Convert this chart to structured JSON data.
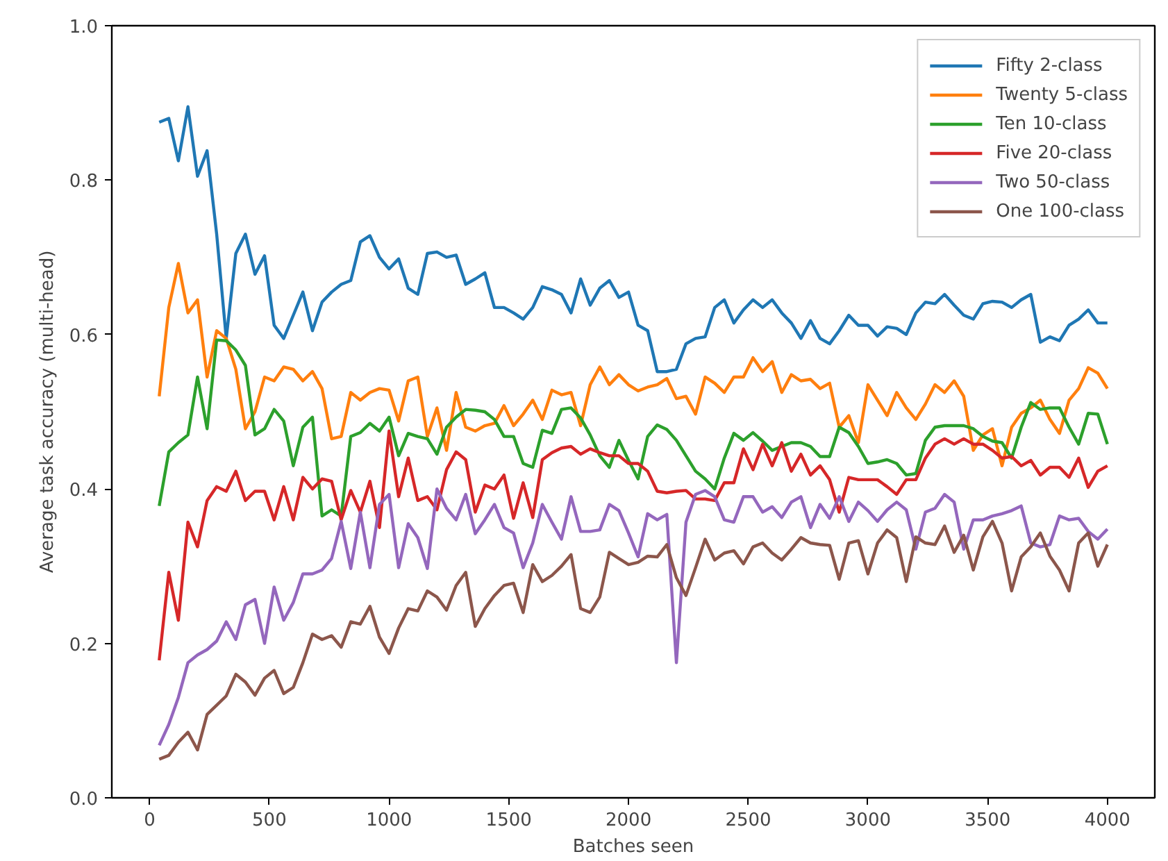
{
  "chart_data": {
    "type": "line",
    "xlabel": "Batches seen",
    "ylabel": "Average task accuracy (multi-head)",
    "x": [
      40,
      80,
      120,
      160,
      200,
      240,
      280,
      320,
      360,
      400,
      440,
      480,
      520,
      560,
      600,
      640,
      680,
      720,
      760,
      800,
      840,
      880,
      920,
      960,
      1000,
      1040,
      1080,
      1120,
      1160,
      1200,
      1240,
      1280,
      1320,
      1360,
      1400,
      1440,
      1480,
      1520,
      1560,
      1600,
      1640,
      1680,
      1720,
      1760,
      1800,
      1840,
      1880,
      1920,
      1960,
      2000,
      2040,
      2080,
      2120,
      2160,
      2200,
      2240,
      2280,
      2320,
      2360,
      2400,
      2440,
      2480,
      2520,
      2560,
      2600,
      2640,
      2680,
      2720,
      2760,
      2800,
      2840,
      2880,
      2920,
      2960,
      3000,
      3040,
      3080,
      3120,
      3160,
      3200,
      3240,
      3280,
      3320,
      3360,
      3400,
      3440,
      3480,
      3520,
      3560,
      3600,
      3640,
      3680,
      3720,
      3760,
      3800,
      3840,
      3880,
      3920,
      3960,
      4000
    ],
    "xlim": [
      -158,
      4198
    ],
    "xticks": [
      0,
      500,
      1000,
      1500,
      2000,
      2500,
      3000,
      3500,
      4000
    ],
    "ylim": [
      0,
      1
    ],
    "yticks": [
      {
        "value": 0,
        "label": "0.0"
      },
      {
        "value": 0.2,
        "label": "0.2"
      },
      {
        "value": 0.4,
        "label": "0.4"
      },
      {
        "value": 0.6,
        "label": "0.6"
      },
      {
        "value": 0.8,
        "label": "0.8"
      },
      {
        "value": 1,
        "label": "1.0"
      }
    ],
    "grid": false,
    "legend": "top right",
    "marker": "none",
    "line_style": "solid",
    "series": [
      {
        "name": "Fifty 2-class",
        "color": "#1f77b4",
        "values": [
          0.875,
          0.88,
          0.825,
          0.895,
          0.805,
          0.838,
          0.73,
          0.595,
          0.705,
          0.73,
          0.678,
          0.702,
          0.612,
          0.595,
          0.625,
          0.655,
          0.605,
          0.642,
          0.655,
          0.665,
          0.67,
          0.72,
          0.728,
          0.7,
          0.685,
          0.698,
          0.66,
          0.652,
          0.705,
          0.707,
          0.7,
          0.703,
          0.665,
          0.672,
          0.68,
          0.635,
          0.635,
          0.628,
          0.62,
          0.635,
          0.662,
          0.658,
          0.652,
          0.628,
          0.672,
          0.638,
          0.66,
          0.67,
          0.648,
          0.655,
          0.612,
          0.605,
          0.552,
          0.552,
          0.555,
          0.588,
          0.595,
          0.597,
          0.635,
          0.645,
          0.615,
          0.632,
          0.645,
          0.635,
          0.645,
          0.628,
          0.615,
          0.595,
          0.618,
          0.595,
          0.588,
          0.605,
          0.625,
          0.612,
          0.612,
          0.598,
          0.61,
          0.608,
          0.6,
          0.628,
          0.642,
          0.64,
          0.652,
          0.638,
          0.625,
          0.62,
          0.64,
          0.643,
          0.642,
          0.635,
          0.645,
          0.652,
          0.59,
          0.597,
          0.592,
          0.612,
          0.62,
          0.632,
          0.615,
          0.615
        ]
      },
      {
        "name": "Twenty 5-class",
        "color": "#ff7f0e",
        "values": [
          0.52,
          0.635,
          0.692,
          0.628,
          0.645,
          0.545,
          0.605,
          0.595,
          0.555,
          0.478,
          0.5,
          0.545,
          0.54,
          0.558,
          0.555,
          0.54,
          0.552,
          0.53,
          0.465,
          0.468,
          0.525,
          0.515,
          0.525,
          0.53,
          0.528,
          0.488,
          0.54,
          0.545,
          0.468,
          0.505,
          0.45,
          0.525,
          0.48,
          0.475,
          0.482,
          0.485,
          0.508,
          0.482,
          0.497,
          0.515,
          0.49,
          0.528,
          0.522,
          0.525,
          0.482,
          0.535,
          0.558,
          0.535,
          0.548,
          0.535,
          0.527,
          0.532,
          0.535,
          0.543,
          0.517,
          0.52,
          0.497,
          0.545,
          0.537,
          0.525,
          0.545,
          0.545,
          0.57,
          0.552,
          0.565,
          0.525,
          0.548,
          0.54,
          0.542,
          0.53,
          0.537,
          0.48,
          0.495,
          0.46,
          0.535,
          0.515,
          0.495,
          0.525,
          0.505,
          0.49,
          0.51,
          0.535,
          0.525,
          0.54,
          0.52,
          0.45,
          0.47,
          0.478,
          0.43,
          0.48,
          0.498,
          0.505,
          0.515,
          0.49,
          0.472,
          0.515,
          0.53,
          0.557,
          0.55,
          0.53
        ]
      },
      {
        "name": "Ten 10-class",
        "color": "#2ca02c",
        "values": [
          0.378,
          0.448,
          0.46,
          0.47,
          0.545,
          0.478,
          0.593,
          0.592,
          0.58,
          0.56,
          0.47,
          0.478,
          0.503,
          0.488,
          0.43,
          0.48,
          0.493,
          0.365,
          0.373,
          0.365,
          0.468,
          0.473,
          0.485,
          0.475,
          0.493,
          0.443,
          0.472,
          0.468,
          0.465,
          0.445,
          0.48,
          0.493,
          0.503,
          0.502,
          0.5,
          0.49,
          0.468,
          0.468,
          0.433,
          0.428,
          0.476,
          0.472,
          0.503,
          0.505,
          0.492,
          0.47,
          0.443,
          0.428,
          0.463,
          0.437,
          0.413,
          0.468,
          0.483,
          0.477,
          0.463,
          0.443,
          0.423,
          0.413,
          0.4,
          0.44,
          0.472,
          0.463,
          0.473,
          0.462,
          0.45,
          0.455,
          0.46,
          0.46,
          0.455,
          0.442,
          0.442,
          0.48,
          0.473,
          0.455,
          0.433,
          0.435,
          0.438,
          0.433,
          0.418,
          0.42,
          0.463,
          0.48,
          0.482,
          0.482,
          0.482,
          0.478,
          0.468,
          0.462,
          0.46,
          0.44,
          0.48,
          0.512,
          0.503,
          0.505,
          0.505,
          0.48,
          0.458,
          0.498,
          0.497,
          0.458
        ]
      },
      {
        "name": "Five 20-class",
        "color": "#d62728",
        "values": [
          0.178,
          0.292,
          0.23,
          0.357,
          0.325,
          0.385,
          0.403,
          0.397,
          0.423,
          0.385,
          0.397,
          0.397,
          0.36,
          0.403,
          0.36,
          0.415,
          0.4,
          0.413,
          0.41,
          0.36,
          0.398,
          0.37,
          0.41,
          0.35,
          0.475,
          0.39,
          0.44,
          0.385,
          0.39,
          0.373,
          0.425,
          0.448,
          0.438,
          0.37,
          0.405,
          0.4,
          0.418,
          0.362,
          0.408,
          0.363,
          0.438,
          0.447,
          0.453,
          0.455,
          0.445,
          0.452,
          0.447,
          0.443,
          0.443,
          0.433,
          0.433,
          0.423,
          0.397,
          0.395,
          0.397,
          0.398,
          0.387,
          0.387,
          0.385,
          0.408,
          0.408,
          0.452,
          0.425,
          0.458,
          0.43,
          0.46,
          0.423,
          0.445,
          0.418,
          0.43,
          0.412,
          0.37,
          0.415,
          0.412,
          0.412,
          0.412,
          0.403,
          0.393,
          0.412,
          0.412,
          0.44,
          0.458,
          0.465,
          0.458,
          0.465,
          0.458,
          0.458,
          0.45,
          0.44,
          0.442,
          0.43,
          0.437,
          0.418,
          0.428,
          0.428,
          0.415,
          0.44,
          0.402,
          0.423,
          0.43
        ]
      },
      {
        "name": "Two 50-class",
        "color": "#9467bd",
        "values": [
          0.068,
          0.095,
          0.13,
          0.175,
          0.185,
          0.192,
          0.203,
          0.228,
          0.205,
          0.25,
          0.257,
          0.2,
          0.273,
          0.23,
          0.253,
          0.29,
          0.29,
          0.295,
          0.31,
          0.358,
          0.297,
          0.37,
          0.298,
          0.38,
          0.393,
          0.298,
          0.355,
          0.337,
          0.297,
          0.4,
          0.375,
          0.36,
          0.393,
          0.342,
          0.36,
          0.38,
          0.35,
          0.343,
          0.298,
          0.33,
          0.38,
          0.357,
          0.335,
          0.39,
          0.345,
          0.345,
          0.347,
          0.38,
          0.372,
          0.343,
          0.312,
          0.368,
          0.36,
          0.367,
          0.175,
          0.357,
          0.393,
          0.398,
          0.39,
          0.36,
          0.357,
          0.39,
          0.39,
          0.37,
          0.377,
          0.363,
          0.383,
          0.39,
          0.35,
          0.38,
          0.362,
          0.39,
          0.358,
          0.383,
          0.372,
          0.358,
          0.373,
          0.383,
          0.373,
          0.322,
          0.37,
          0.375,
          0.393,
          0.383,
          0.322,
          0.36,
          0.36,
          0.365,
          0.368,
          0.372,
          0.378,
          0.33,
          0.325,
          0.328,
          0.365,
          0.36,
          0.362,
          0.345,
          0.335,
          0.348
        ]
      },
      {
        "name": "One 100-class",
        "color": "#8c564b",
        "values": [
          0.05,
          0.055,
          0.072,
          0.085,
          0.062,
          0.108,
          0.12,
          0.132,
          0.16,
          0.15,
          0.133,
          0.155,
          0.165,
          0.135,
          0.143,
          0.175,
          0.212,
          0.205,
          0.21,
          0.195,
          0.228,
          0.225,
          0.248,
          0.208,
          0.187,
          0.22,
          0.245,
          0.242,
          0.268,
          0.26,
          0.243,
          0.275,
          0.292,
          0.222,
          0.245,
          0.262,
          0.275,
          0.278,
          0.24,
          0.302,
          0.28,
          0.288,
          0.3,
          0.315,
          0.245,
          0.24,
          0.26,
          0.318,
          0.31,
          0.302,
          0.305,
          0.313,
          0.312,
          0.328,
          0.285,
          0.262,
          0.298,
          0.335,
          0.308,
          0.317,
          0.32,
          0.303,
          0.325,
          0.33,
          0.317,
          0.308,
          0.322,
          0.337,
          0.33,
          0.328,
          0.327,
          0.283,
          0.33,
          0.333,
          0.29,
          0.33,
          0.347,
          0.337,
          0.28,
          0.338,
          0.33,
          0.328,
          0.352,
          0.318,
          0.34,
          0.295,
          0.338,
          0.358,
          0.33,
          0.268,
          0.312,
          0.325,
          0.343,
          0.313,
          0.295,
          0.268,
          0.33,
          0.343,
          0.3,
          0.328
        ]
      }
    ]
  }
}
